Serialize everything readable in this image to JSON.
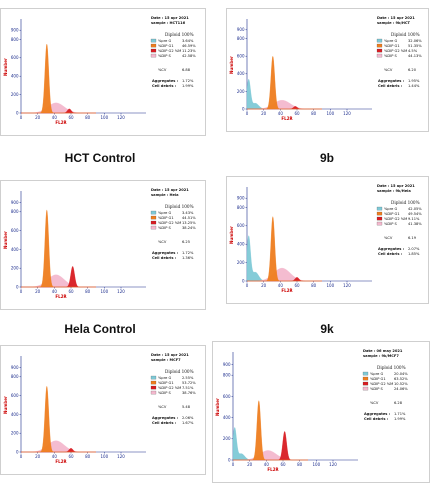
{
  "colors": {
    "g1": "#ee7d1f",
    "s": "#f3b8cd",
    "g2m": "#d81c22",
    "apop": "#7ec9d6",
    "axis": "#1a2b8c",
    "axislabel": "#cc0000"
  },
  "captions": [
    "HCT Control",
    "9b",
    "Hela Control",
    "9k"
  ],
  "chart_data": [
    {
      "type": "area",
      "caption": "HCT Control",
      "xlabel": "FL2R",
      "ylabel": "Number",
      "xlim": [
        0,
        150
      ],
      "ylim": [
        0,
        1000
      ],
      "xticks": [
        "0",
        "20",
        "40",
        "60",
        "80",
        "100",
        "120"
      ],
      "yticks": [
        "0",
        "200",
        "400",
        "600",
        "800",
        "900"
      ],
      "date": "Date : 15 apr 2021",
      "sample": "sample : HCT116",
      "model": "Diploid 100%",
      "legend": [
        "%pre G",
        "%DIP G1",
        "%DIP G2 %M",
        "%DIP S"
      ],
      "values": [
        "3.64%",
        "46.59%",
        "11.23%",
        "42.58%"
      ],
      "cv_label": "%CV",
      "cv": "6.88",
      "agg_label": "Aggregates :",
      "agg": "1.72%",
      "debris_label": "Cell debris :",
      "debris": "1.99%",
      "peaks": {
        "apop": 0,
        "g1": 750,
        "s": 110,
        "g2m": 45
      },
      "g2m_pos": 58
    },
    {
      "type": "area",
      "caption": "9b",
      "xlabel": "FL2R",
      "ylabel": "Number",
      "xlim": [
        0,
        150
      ],
      "ylim": [
        0,
        1000
      ],
      "xticks": [
        "0",
        "20",
        "40",
        "60",
        "80",
        "100",
        "120"
      ],
      "yticks": [
        "0",
        "200",
        "400",
        "600",
        "800",
        "900"
      ],
      "date": "Date : 15 apr 2021",
      "sample": "sample : 9b/HCT",
      "model": "Diploid 100%",
      "legend": [
        "%pre G",
        "%DIP G1",
        "%DIP G2 %M",
        "%DIP S"
      ],
      "values": [
        "32.06%",
        "51.35%",
        "4.5%",
        "44.13%"
      ],
      "cv_label": "%CV",
      "cv": "6.20",
      "agg_label": "Aggregates :",
      "agg": "1.95%",
      "debris_label": "Cell debris :",
      "debris": "1.44%",
      "peaks": {
        "apop": 330,
        "g1": 600,
        "s": 100,
        "g2m": 30
      },
      "g2m_pos": 58
    },
    {
      "type": "area",
      "caption": "Hela Control",
      "xlabel": "FL2R",
      "ylabel": "Number",
      "xlim": [
        0,
        150
      ],
      "ylim": [
        0,
        1000
      ],
      "xticks": [
        "0",
        "20",
        "40",
        "60",
        "80",
        "100",
        "120"
      ],
      "yticks": [
        "0",
        "200",
        "400",
        "600",
        "800",
        "900"
      ],
      "date": "Date : 15 apr 2021",
      "sample": "sample : Hela",
      "model": "Diploid 100%",
      "legend": [
        "%pre G",
        "%DIP G1",
        "%DIP G2 %M",
        "%DIP S"
      ],
      "values": [
        "3.43%",
        "44.51%",
        "13.25%",
        "38.24%"
      ],
      "cv_label": "%CV",
      "cv": "6.25",
      "agg_label": "Aggregates :",
      "agg": "1.72%",
      "debris_label": "Cell debris :",
      "debris": "1.36%",
      "peaks": {
        "apop": 0,
        "g1": 820,
        "s": 130,
        "g2m": 220
      },
      "g2m_pos": 62
    },
    {
      "type": "area",
      "caption": "9k",
      "xlabel": "FL2R",
      "ylabel": "Number",
      "xlim": [
        0,
        150
      ],
      "ylim": [
        0,
        1000
      ],
      "xticks": [
        "0",
        "20",
        "40",
        "60",
        "80",
        "100",
        "120"
      ],
      "yticks": [
        "0",
        "200",
        "400",
        "600",
        "800",
        "900"
      ],
      "date": "Date : 15 apr 2021",
      "sample": "sample : 9k/Hela",
      "model": "Diploid 100%",
      "legend": [
        "%pre G",
        "%DIP G1",
        "%DIP G2 %M",
        "%DIP S"
      ],
      "values": [
        "42.05%",
        "49.54%",
        "9.11%",
        "41.38%"
      ],
      "cv_label": "%CV",
      "cv": "6.19",
      "agg_label": "Aggregates :",
      "agg": "2.07%",
      "debris_label": "Cell debris :",
      "debris": "1.85%",
      "peaks": {
        "apop": 480,
        "g1": 700,
        "s": 140,
        "g2m": 40
      },
      "g2m_pos": 60
    },
    {
      "type": "area",
      "caption": "",
      "xlabel": "FL2R",
      "ylabel": "Number",
      "xlim": [
        0,
        150
      ],
      "ylim": [
        0,
        1000
      ],
      "xticks": [
        "0",
        "20",
        "40",
        "60",
        "80",
        "100",
        "120"
      ],
      "yticks": [
        "0",
        "200",
        "400",
        "600",
        "800",
        "900"
      ],
      "date": "Date : 15 apr 2021",
      "sample": "sample : MCF7",
      "model": "Diploid 100%",
      "legend": [
        "%pre G",
        "%DIP G1",
        "%DIP G2 %M",
        "%DIP S"
      ],
      "values": [
        "2.55%",
        "53.72%",
        "7.51%",
        "38.76%"
      ],
      "cv_label": "%CV",
      "cv": "5.48",
      "agg_label": "Aggregates :",
      "agg": "2.06%",
      "debris_label": "Cell debris :",
      "debris": "1.67%",
      "peaks": {
        "apop": 0,
        "g1": 700,
        "s": 120,
        "g2m": 40
      },
      "g2m_pos": 60
    },
    {
      "type": "area",
      "caption": "",
      "xlabel": "FL2R",
      "ylabel": "Number",
      "xlim": [
        0,
        150
      ],
      "ylim": [
        0,
        1000
      ],
      "xticks": [
        "0",
        "20",
        "40",
        "60",
        "80",
        "100",
        "120"
      ],
      "yticks": [
        "0",
        "200",
        "400",
        "600",
        "800",
        "900"
      ],
      "date": "Date : 06 may 2021",
      "sample": "sample : 9k/MCF7",
      "model": "Diploid 100%",
      "legend": [
        "%pre G",
        "%DIP G1",
        "%DIP G2 %M",
        "%DIP S"
      ],
      "values": [
        "20.04%",
        "63.52%",
        "10.52%",
        "24.06%"
      ],
      "cv_label": "%CV",
      "cv": "6.28",
      "agg_label": "Aggregates :",
      "agg": "1.71%",
      "debris_label": "Cell debris :",
      "debris": "1.99%",
      "peaks": {
        "apop": 300,
        "g1": 560,
        "s": 90,
        "g2m": 270
      },
      "g2m_pos": 62
    }
  ]
}
